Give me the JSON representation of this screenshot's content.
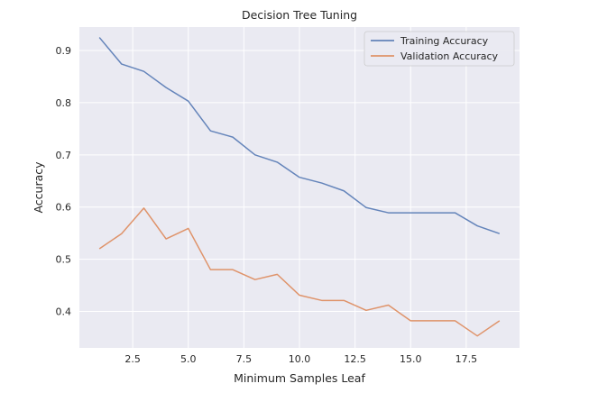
{
  "chart_data": {
    "type": "line",
    "title": "Decision Tree Tuning",
    "xlabel": "Minimum Samples Leaf",
    "ylabel": "Accuracy",
    "xlim": [
      0.1,
      19.9
    ],
    "ylim": [
      0.33,
      0.945
    ],
    "xticks": [
      2.5,
      5.0,
      7.5,
      10.0,
      12.5,
      15.0,
      17.5
    ],
    "xtick_labels": [
      "2.5",
      "5.0",
      "7.5",
      "10.0",
      "12.5",
      "15.0",
      "17.5"
    ],
    "yticks": [
      0.4,
      0.5,
      0.6,
      0.7,
      0.8,
      0.9
    ],
    "ytick_labels": [
      "0.4",
      "0.5",
      "0.6",
      "0.7",
      "0.8",
      "0.9"
    ],
    "grid": true,
    "legend_position": "top-right",
    "x": [
      1,
      2,
      3,
      4,
      5,
      6,
      7,
      8,
      9,
      10,
      11,
      12,
      13,
      14,
      15,
      16,
      17,
      18,
      19
    ],
    "series": [
      {
        "name": "Training Accuracy",
        "color": "#4c72b0",
        "values": [
          0.925,
          0.874,
          0.86,
          0.829,
          0.803,
          0.746,
          0.734,
          0.7,
          0.686,
          0.657,
          0.646,
          0.631,
          0.599,
          0.589,
          0.589,
          0.589,
          0.589,
          0.564,
          0.549
        ]
      },
      {
        "name": "Validation Accuracy",
        "color": "#dd8452",
        "values": [
          0.52,
          0.549,
          0.598,
          0.539,
          0.559,
          0.48,
          0.48,
          0.461,
          0.471,
          0.431,
          0.421,
          0.421,
          0.402,
          0.412,
          0.382,
          0.382,
          0.382,
          0.353,
          0.382
        ]
      }
    ],
    "background_color": "#eaeaf2",
    "grid_color": "#ffffff"
  }
}
